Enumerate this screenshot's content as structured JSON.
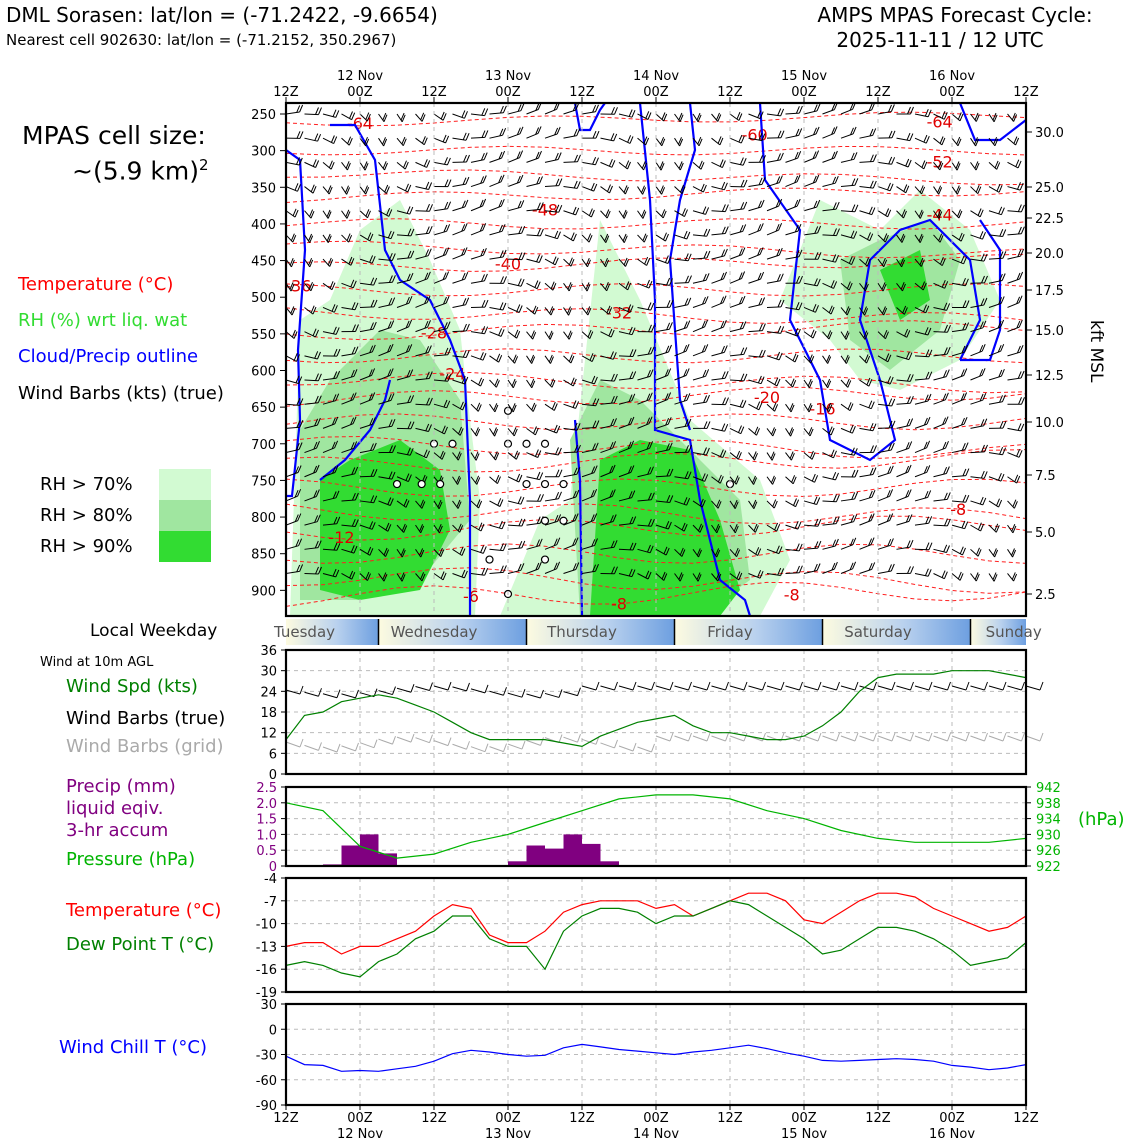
{
  "header": {
    "title_left": "DML Sorasen: lat/lon = (-71.2422, -9.6654)",
    "subtitle_left": "Nearest cell 902630: lat/lon = (-71.2152, 350.2967)",
    "title_right_1": "AMPS MPAS Forecast Cycle:",
    "title_right_2": "2025-11-11 / 12 UTC"
  },
  "cell_size": {
    "line1": "MPAS cell size:",
    "line2": "~(5.9 km)",
    "sup": "2"
  },
  "legend": {
    "temperature": "Temperature (°C)",
    "rh": "RH (%) wrt liq. wat",
    "cloud": "Cloud/Precip outline",
    "wind": "Wind Barbs (kts) (true)",
    "rh70": "RH > 70%",
    "rh80": "RH > 80%",
    "rh90": "RH > 90%",
    "colors": {
      "rh70": "#d2fad2",
      "rh80": "#a0e6a0",
      "rh90": "#32dc32",
      "temp": "#ff0000",
      "cloud": "#0000ff"
    }
  },
  "weekday": {
    "label": "Local Weekday",
    "days": [
      "Tuesday",
      "Wednesday",
      "Thursday",
      "Friday",
      "Saturday",
      "Sunday"
    ]
  },
  "panel_labels": {
    "wind10m": "Wind at 10m AGL",
    "wind_spd": "Wind Spd (kts)",
    "barbs_true": "Wind Barbs (true)",
    "barbs_grid": "Wind Barbs (grid)",
    "precip1": "Precip (mm)",
    "precip2": "liquid eqiv.",
    "precip3": "3-hr accum",
    "pressure": "Pressure (hPa)",
    "hpa": "(hPa)",
    "temp": "Temperature (°C)",
    "dew": "Dew Point T (°C)",
    "windchill": "Wind Chill T (°C)",
    "kft": "kft MSL"
  },
  "chart_data": [
    {
      "type": "heatmap",
      "title": "",
      "x_ticks": [
        "12Z",
        "00Z",
        "12Z",
        "00Z",
        "12Z",
        "00Z",
        "12Z",
        "00Z",
        "12Z",
        "00Z",
        "12Z"
      ],
      "x_date_labels": [
        "12 Nov",
        "13 Nov",
        "14 Nov",
        "15 Nov",
        "16 Nov"
      ],
      "ylabel_left": "",
      "y_ticks": [
        250,
        300,
        350,
        400,
        450,
        500,
        550,
        600,
        650,
        700,
        750,
        800,
        850,
        900
      ],
      "y_right_ticks": [
        "30.0",
        "25.0",
        "22.5",
        "20.0",
        "17.5",
        "15.0",
        "12.5",
        "10.0",
        "7.5",
        "5.0",
        "2.5"
      ],
      "y_right_values": [
        30.0,
        25.0,
        22.5,
        20.0,
        17.5,
        15.0,
        12.5,
        10.0,
        7.5,
        5.0,
        2.5
      ],
      "ylabel_right": "kft MSL",
      "temperature_labels": [
        {
          "text": "-64",
          "x_hr": 12,
          "p": 262
        },
        {
          "text": "-60",
          "x_hr": 76,
          "p": 278
        },
        {
          "text": "-64",
          "x_hr": 106,
          "p": 260
        },
        {
          "text": "-52",
          "x_hr": 106,
          "p": 315
        },
        {
          "text": "-48",
          "x_hr": 42,
          "p": 380
        },
        {
          "text": "-44",
          "x_hr": 106,
          "p": 387
        },
        {
          "text": "-40",
          "x_hr": 36,
          "p": 454
        },
        {
          "text": "-36",
          "x_hr": 2,
          "p": 484
        },
        {
          "text": "-32",
          "x_hr": 54,
          "p": 521
        },
        {
          "text": "-28",
          "x_hr": 24,
          "p": 548
        },
        {
          "text": "-24",
          "x_hr": 27,
          "p": 604
        },
        {
          "text": "-20",
          "x_hr": 78,
          "p": 636
        },
        {
          "text": "-16",
          "x_hr": 87,
          "p": 652
        },
        {
          "text": "-12",
          "x_hr": 9,
          "p": 827
        },
        {
          "text": "-8",
          "x_hr": 54,
          "p": 918
        },
        {
          "text": "-8",
          "x_hr": 82,
          "p": 906
        },
        {
          "text": "-8",
          "x_hr": 109,
          "p": 789
        },
        {
          "text": "-6",
          "x_hr": 30,
          "p": 908
        }
      ]
    },
    {
      "type": "line",
      "title": "",
      "ylim": [
        0,
        36
      ],
      "y_ticks": [
        0,
        6,
        12,
        18,
        24,
        30,
        36
      ],
      "series": [
        {
          "name": "Wind Spd (kts)",
          "color": "#008000",
          "x_hr": [
            0,
            3,
            6,
            9,
            12,
            15,
            18,
            21,
            24,
            27,
            30,
            33,
            36,
            39,
            42,
            45,
            48,
            51,
            54,
            57,
            60,
            63,
            66,
            69,
            72,
            75,
            78,
            81,
            84,
            87,
            90,
            93,
            96,
            99,
            102,
            105,
            108,
            111,
            114,
            117,
            120
          ],
          "values": [
            10,
            17,
            18,
            21,
            22,
            23,
            22,
            20,
            18,
            15,
            12,
            10,
            10,
            10,
            10,
            9,
            8,
            11,
            13,
            15,
            16,
            17,
            14,
            12,
            12,
            11,
            10,
            10,
            11,
            14,
            18,
            24,
            28,
            29,
            29,
            29,
            30,
            30,
            30,
            29,
            28
          ]
        }
      ]
    },
    {
      "type": "bar",
      "title": "",
      "ylim": [
        0,
        2.5
      ],
      "y_ticks": [
        0,
        0.5,
        1.0,
        1.5,
        2.0,
        2.5
      ],
      "y_right_ticks": [
        922,
        926,
        930,
        934,
        938,
        942
      ],
      "series": [
        {
          "name": "Precip (mm)",
          "color": "#800080",
          "x_hr": [
            6,
            9,
            12,
            15,
            36,
            39,
            42,
            45,
            48,
            51
          ],
          "values": [
            0.05,
            0.65,
            1.0,
            0.4,
            0.15,
            0.65,
            0.55,
            1.0,
            0.7,
            0.15
          ]
        },
        {
          "name": "Pressure (hPa)",
          "color": "#00b400",
          "type": "line",
          "x_hr": [
            0,
            6,
            12,
            18,
            24,
            30,
            36,
            42,
            48,
            54,
            60,
            66,
            72,
            78,
            84,
            90,
            96,
            102,
            108,
            114,
            120
          ],
          "values": [
            938,
            936,
            927,
            924,
            925,
            928,
            930,
            933,
            936,
            939,
            940,
            940,
            939,
            936,
            934,
            931,
            929,
            928,
            928,
            928,
            929
          ]
        }
      ]
    },
    {
      "type": "line",
      "title": "",
      "ylim": [
        -19,
        -4
      ],
      "y_ticks": [
        -4,
        -7,
        -10,
        -13,
        -16,
        -19
      ],
      "series": [
        {
          "name": "Temperature (°C)",
          "color": "#ff0000",
          "x_hr": [
            0,
            3,
            6,
            9,
            12,
            15,
            18,
            21,
            24,
            27,
            30,
            33,
            36,
            39,
            42,
            45,
            48,
            51,
            54,
            57,
            60,
            63,
            66,
            69,
            72,
            75,
            78,
            81,
            84,
            87,
            90,
            93,
            96,
            99,
            102,
            105,
            108,
            111,
            114,
            117,
            120
          ],
          "values": [
            -13,
            -12.5,
            -12.5,
            -14,
            -13,
            -13,
            -12,
            -11,
            -9,
            -7.5,
            -8,
            -11.5,
            -12.5,
            -12.5,
            -11,
            -8.5,
            -7.5,
            -7,
            -7,
            -7,
            -8,
            -7.5,
            -9,
            -8,
            -7,
            -6,
            -6,
            -7,
            -9.5,
            -10,
            -8.5,
            -7,
            -6,
            -6,
            -6.5,
            -8,
            -9,
            -10,
            -11,
            -10.5,
            -9
          ]
        },
        {
          "name": "Dew Point T (°C)",
          "color": "#008000",
          "x_hr": [
            0,
            3,
            6,
            9,
            12,
            15,
            18,
            21,
            24,
            27,
            30,
            33,
            36,
            39,
            42,
            45,
            48,
            51,
            54,
            57,
            60,
            63,
            66,
            69,
            72,
            75,
            78,
            81,
            84,
            87,
            90,
            93,
            96,
            99,
            102,
            105,
            108,
            111,
            114,
            117,
            120
          ],
          "values": [
            -15.5,
            -15,
            -15.5,
            -16.5,
            -17,
            -15,
            -14,
            -12,
            -11,
            -9,
            -9,
            -12,
            -13,
            -13,
            -16,
            -11,
            -9,
            -8,
            -8,
            -8.5,
            -10,
            -9,
            -9,
            -8,
            -7,
            -7.5,
            -9,
            -10.5,
            -12,
            -14,
            -13.5,
            -12,
            -10.5,
            -10.5,
            -11,
            -12,
            -13.5,
            -15.5,
            -15,
            -14.5,
            -12.5
          ]
        }
      ]
    },
    {
      "type": "line",
      "title": "",
      "ylim": [
        -90,
        30
      ],
      "y_ticks": [
        30,
        0,
        -30,
        -60,
        -90
      ],
      "series": [
        {
          "name": "Wind Chill T (°C)",
          "color": "#0000ff",
          "x_hr": [
            0,
            3,
            6,
            9,
            12,
            15,
            18,
            21,
            24,
            27,
            30,
            33,
            36,
            39,
            42,
            45,
            48,
            51,
            54,
            57,
            60,
            63,
            66,
            69,
            72,
            75,
            78,
            81,
            84,
            87,
            90,
            93,
            96,
            99,
            102,
            105,
            108,
            111,
            114,
            117,
            120
          ],
          "values": [
            -32,
            -42,
            -43,
            -50,
            -49,
            -50,
            -47,
            -44,
            -38,
            -29,
            -25,
            -27,
            -30,
            -32,
            -31,
            -22,
            -18,
            -21,
            -24,
            -26,
            -28,
            -30,
            -27,
            -25,
            -22,
            -19,
            -23,
            -28,
            -32,
            -37,
            -38,
            -37,
            -36,
            -35,
            -36,
            -38,
            -43,
            -45,
            -48,
            -46,
            -42
          ]
        }
      ]
    }
  ]
}
